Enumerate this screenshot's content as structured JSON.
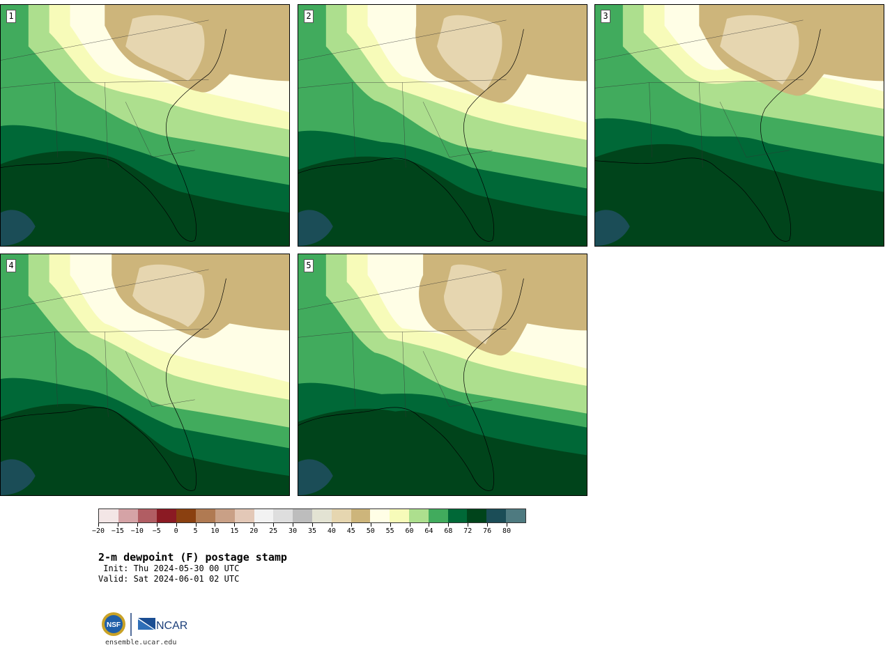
{
  "panels": [
    {
      "label": "1"
    },
    {
      "label": "2"
    },
    {
      "label": "3"
    },
    {
      "label": "4"
    },
    {
      "label": "5"
    }
  ],
  "colorbar": {
    "colors": [
      "#f3e6e6",
      "#d5a3a6",
      "#b15d63",
      "#8b1a23",
      "#8a4010",
      "#b07a52",
      "#c9a086",
      "#e3c8b7",
      "#f2f2f2",
      "#dedede",
      "#bdbdbd",
      "#e3e3d3",
      "#e6d6b0",
      "#cdb57b",
      "#fffee6",
      "#f7fbb9",
      "#addf8e",
      "#41ab5d",
      "#006837",
      "#00441b",
      "#1b4d57",
      "#4e7a80"
    ],
    "tick_labels": [
      "−20",
      "−15",
      "−10",
      "−5",
      "0",
      "5",
      "10",
      "15",
      "20",
      "25",
      "30",
      "35",
      "40",
      "45",
      "50",
      "55",
      "60",
      "64",
      "68",
      "72",
      "76",
      "80"
    ]
  },
  "title": "2-m dewpoint (F) postage stamp",
  "init": " Init: Thu 2024-05-30 00 UTC",
  "valid": "Valid: Sat 2024-06-01 02 UTC",
  "footer": {
    "logo_nsf": "NSF",
    "logo_ncar": "NCAR",
    "url": "ensemble.ucar.edu"
  }
}
